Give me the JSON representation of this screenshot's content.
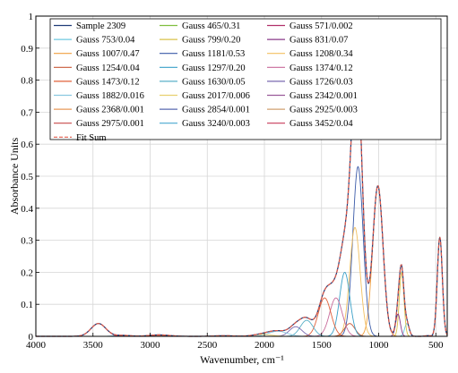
{
  "chart_data": {
    "type": "line",
    "title": "",
    "xlabel": "Wavenumber, cm⁻¹",
    "ylabel": "Absorbance Units",
    "xlim": [
      4000,
      400
    ],
    "ylim": [
      0,
      1
    ],
    "x_reversed": true,
    "grid": true,
    "legend_position": "top-left",
    "x_ticks": [
      "4000",
      "3500",
      "3000",
      "2500",
      "2000",
      "1500",
      "1000",
      "500"
    ],
    "x_tick_values": [
      4000,
      3500,
      3000,
      2500,
      2000,
      1500,
      1000,
      500
    ],
    "y_ticks": [
      "0",
      "0.1",
      "0.2",
      "0.3",
      "0.4",
      "0.5",
      "0.6",
      "0.7",
      "0.8",
      "0.9",
      "1"
    ],
    "y_tick_values": [
      0,
      0.1,
      0.2,
      0.3,
      0.4,
      0.5,
      0.6,
      0.7,
      0.8,
      0.9,
      1
    ],
    "sample": {
      "name": "Sample 2309",
      "color": "#1f3c78"
    },
    "fit_sum": {
      "name": "Fit Sum",
      "color": "#e05a4a"
    },
    "series": [
      {
        "name": "Gauss 465/0.31",
        "center": 465,
        "height": 0.31,
        "color": "#7fbf3f"
      },
      {
        "name": "Gauss 571/0.002",
        "center": 571,
        "height": 0.002,
        "color": "#b0306a"
      },
      {
        "name": "Gauss 753/0.04",
        "center": 753,
        "height": 0.04,
        "color": "#6ec9e0"
      },
      {
        "name": "Gauss 799/0.20",
        "center": 799,
        "height": 0.2,
        "color": "#d9c24a"
      },
      {
        "name": "Gauss 831/0.07",
        "center": 831,
        "height": 0.07,
        "color": "#8a3a8a"
      },
      {
        "name": "Gauss 1007/0.47",
        "center": 1007,
        "height": 0.47,
        "color": "#f0a040"
      },
      {
        "name": "Gauss 1181/0.53",
        "center": 1181,
        "height": 0.53,
        "color": "#3a5aa8"
      },
      {
        "name": "Gauss 1208/0.34",
        "center": 1208,
        "height": 0.34,
        "color": "#f2c060"
      },
      {
        "name": "Gauss 1254/0.04",
        "center": 1254,
        "height": 0.04,
        "color": "#c85a3a"
      },
      {
        "name": "Gauss 1297/0.20",
        "center": 1297,
        "height": 0.2,
        "color": "#3aa0c8"
      },
      {
        "name": "Gauss 1374/0.12",
        "center": 1374,
        "height": 0.12,
        "color": "#c86a9a"
      },
      {
        "name": "Gauss 1473/0.12",
        "center": 1473,
        "height": 0.12,
        "color": "#e0603a"
      },
      {
        "name": "Gauss 1630/0.05",
        "center": 1630,
        "height": 0.05,
        "color": "#5ab0c8"
      },
      {
        "name": "Gauss 1726/0.03",
        "center": 1726,
        "height": 0.03,
        "color": "#7a6ab0"
      },
      {
        "name": "Gauss 1882/0.016",
        "center": 1882,
        "height": 0.016,
        "color": "#8ac8e0"
      },
      {
        "name": "Gauss 2017/0.006",
        "center": 2017,
        "height": 0.006,
        "color": "#e8d070"
      },
      {
        "name": "Gauss 2342/0.001",
        "center": 2342,
        "height": 0.001,
        "color": "#9a5a9a"
      },
      {
        "name": "Gauss 2368/0.001",
        "center": 2368,
        "height": 0.001,
        "color": "#e89a5a"
      },
      {
        "name": "Gauss 2854/0.001",
        "center": 2854,
        "height": 0.001,
        "color": "#5a6ab0"
      },
      {
        "name": "Gauss 2925/0.003",
        "center": 2925,
        "height": 0.003,
        "color": "#d0a070"
      },
      {
        "name": "Gauss 2975/0.001",
        "center": 2975,
        "height": 0.001,
        "color": "#c84a4a"
      },
      {
        "name": "Gauss 3240/0.003",
        "center": 3240,
        "height": 0.003,
        "color": "#4aa8d0"
      },
      {
        "name": "Gauss 3452/0.04",
        "center": 3452,
        "height": 0.04,
        "color": "#c83a5a"
      }
    ],
    "legend_order": [
      "Sample 2309",
      "Gauss 465/0.31",
      "Gauss 571/0.002",
      "Gauss 753/0.04",
      "Gauss 799/0.20",
      "Gauss 831/0.07",
      "Gauss 1007/0.47",
      "Gauss 1181/0.53",
      "Gauss 1208/0.34",
      "Gauss 1254/0.04",
      "Gauss 1297/0.20",
      "Gauss 1374/0.12",
      "Gauss 1473/0.12",
      "Gauss 1630/0.05",
      "Gauss 1726/0.03",
      "Gauss 1882/0.016",
      "Gauss 2017/0.006",
      "Gauss 2342/0.001",
      "Gauss 2368/0.001",
      "Gauss 2854/0.001",
      "Gauss 2925/0.003",
      "Gauss 2975/0.001",
      "Gauss 3240/0.003",
      "Gauss 3452/0.04",
      "Fit Sum"
    ]
  }
}
